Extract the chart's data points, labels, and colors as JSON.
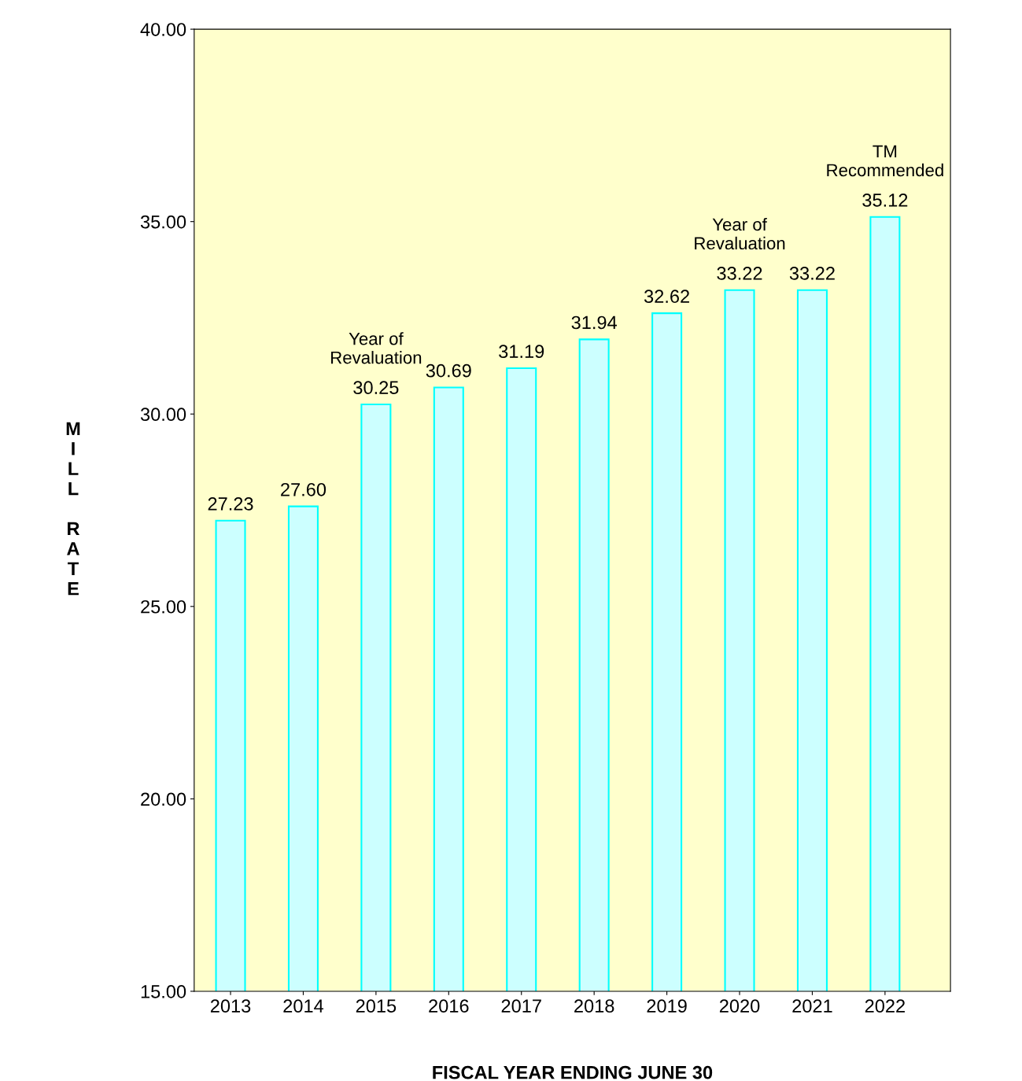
{
  "chart_data": {
    "type": "bar",
    "xlabel": "FISCAL YEAR ENDING JUNE 30",
    "ylabel": "MILL RATE",
    "categories": [
      "2013",
      "2014",
      "2015",
      "2016",
      "2017",
      "2018",
      "2019",
      "2020",
      "2021",
      "2022"
    ],
    "values": [
      27.23,
      27.6,
      30.25,
      30.69,
      31.19,
      31.94,
      32.62,
      33.22,
      33.22,
      35.12
    ],
    "value_labels": [
      "27.23",
      "27.60",
      "30.25",
      "30.69",
      "31.19",
      "31.94",
      "32.62",
      "33.22",
      "33.22",
      "35.12"
    ],
    "color": "#ccffff",
    "ylim": [
      15,
      40
    ],
    "yticks": [
      {
        "value": 15,
        "label": "15.00"
      },
      {
        "value": 20,
        "label": "20.00"
      },
      {
        "value": 25,
        "label": "25.00"
      },
      {
        "value": 30,
        "label": "30.00"
      },
      {
        "value": 35,
        "label": "35.00"
      },
      {
        "value": 40,
        "label": "40.00"
      }
    ],
    "grid": false,
    "annotations": [
      {
        "text": "Year of\nRevaluation",
        "x": "2015",
        "y": 30.25
      },
      {
        "text": "Year of\nRevaluation",
        "x": "2020",
        "y": 33.22
      },
      {
        "text": "TM\nRecommended",
        "x": "2022",
        "y": 35.12
      }
    ]
  }
}
